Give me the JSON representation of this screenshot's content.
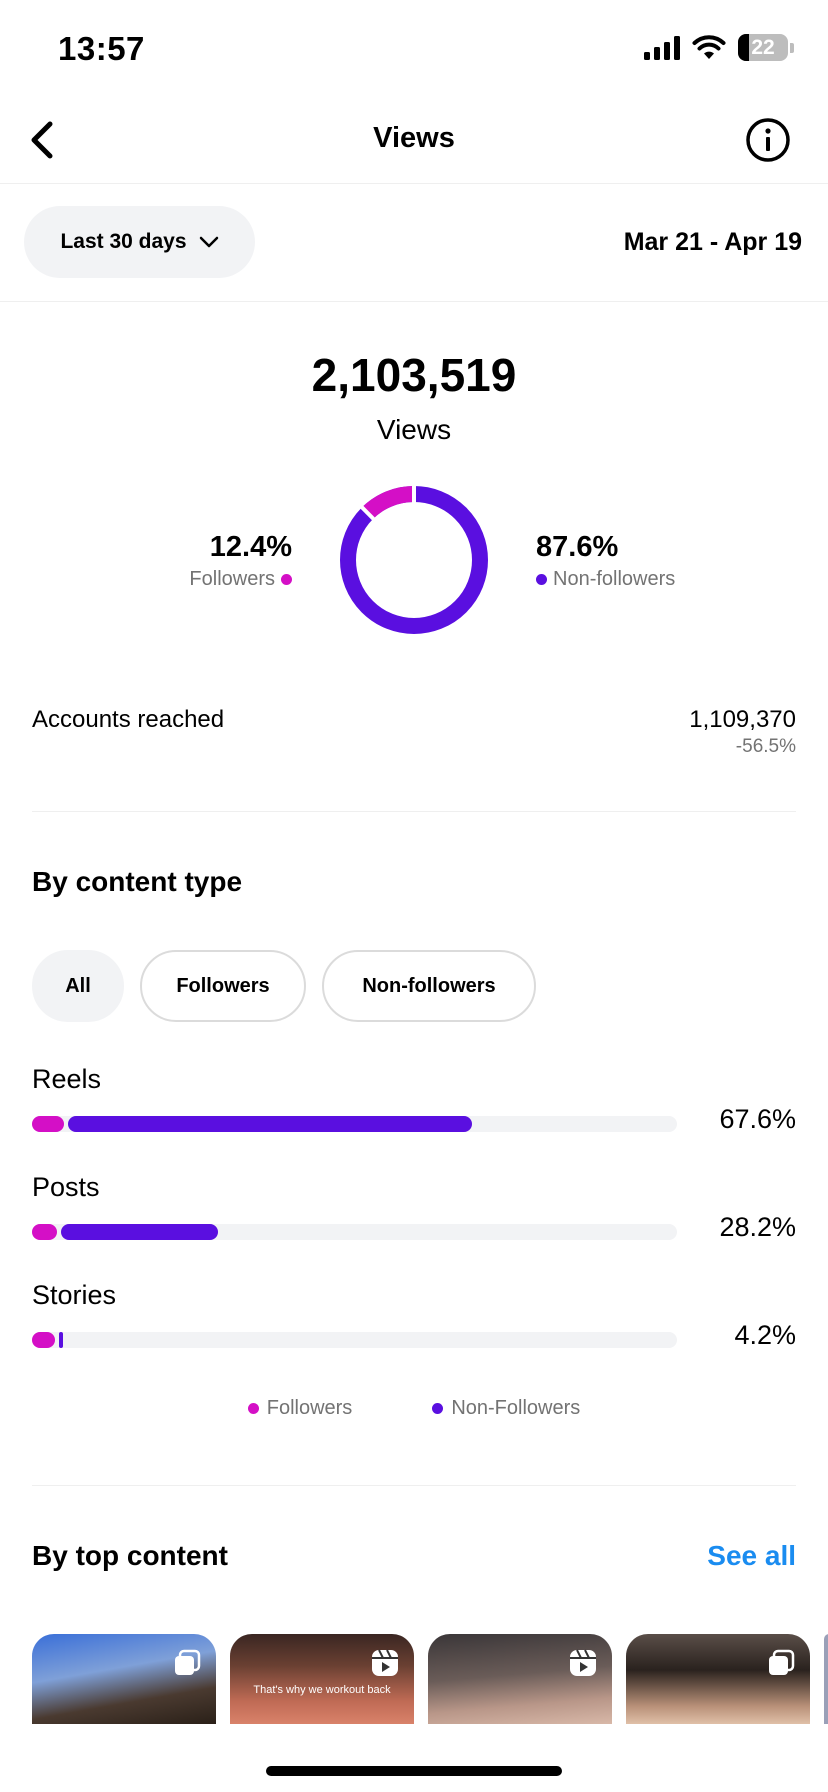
{
  "status_bar": {
    "time": "13:57",
    "battery": "22"
  },
  "nav": {
    "title": "Views"
  },
  "filter": {
    "range_label": "Last 30 days",
    "date_range": "Mar 21 - Apr 19"
  },
  "summary": {
    "total": "2,103,519",
    "total_label": "Views",
    "followers_pct": "12.4%",
    "followers_label": "Followers",
    "non_followers_pct": "87.6%",
    "non_followers_label": "Non-followers",
    "followers_fraction": 0.124
  },
  "reached": {
    "label": "Accounts reached",
    "value": "1,109,370",
    "change": "-56.5%"
  },
  "content_type": {
    "title": "By content type",
    "chips": [
      "All",
      "Followers",
      "Non-followers"
    ],
    "rows": [
      {
        "label": "Reels",
        "pct": "67.6%",
        "followers_fraction": 0.05,
        "non_followers_fraction": 0.626
      },
      {
        "label": "Posts",
        "pct": "28.2%",
        "followers_fraction": 0.038,
        "non_followers_fraction": 0.244
      },
      {
        "label": "Stories",
        "pct": "4.2%",
        "followers_fraction": 0.035,
        "non_followers_fraction": 0.007
      }
    ],
    "legend": {
      "followers": "Followers",
      "non_followers": "Non-Followers"
    }
  },
  "top_content": {
    "title": "By top content",
    "see_all": "See all",
    "items": [
      {
        "type": "carousel",
        "caption": ""
      },
      {
        "type": "reel",
        "caption": "That's why we workout back"
      },
      {
        "type": "reel",
        "caption": ""
      },
      {
        "type": "carousel",
        "caption": ""
      }
    ]
  },
  "colors": {
    "followers": "#d40fc6",
    "non_followers": "#5a0fe0",
    "link": "#1a8cf0"
  }
}
